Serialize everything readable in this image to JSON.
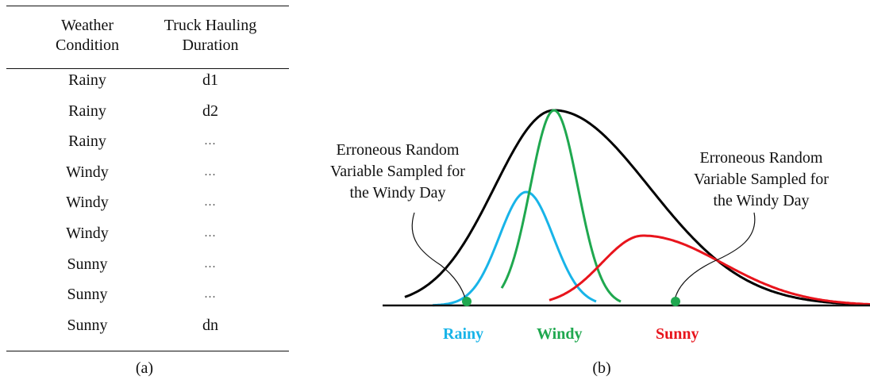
{
  "table": {
    "headers": {
      "weather": [
        "Weather",
        "Condition"
      ],
      "duration": [
        "Truck Hauling",
        "Duration"
      ]
    },
    "rows": [
      {
        "weather": "Rainy",
        "duration": "d1"
      },
      {
        "weather": "Rainy",
        "duration": "d2"
      },
      {
        "weather": "Rainy",
        "duration": "..."
      },
      {
        "weather": "Windy",
        "duration": "..."
      },
      {
        "weather": "Windy",
        "duration": "..."
      },
      {
        "weather": "Windy",
        "duration": "..."
      },
      {
        "weather": "Sunny",
        "duration": "..."
      },
      {
        "weather": "Sunny",
        "duration": "..."
      },
      {
        "weather": "Sunny",
        "duration": "dn"
      }
    ],
    "caption": "(a)"
  },
  "diagram": {
    "caption": "(b)",
    "annotation_left": [
      "Erroneous Random",
      "Variable Sampled for",
      "the Windy Day"
    ],
    "annotation_right": [
      "Erroneous Random",
      "Variable Sampled for",
      "the Windy Day"
    ],
    "labels": {
      "rainy": "Rainy",
      "windy": "Windy",
      "sunny": "Sunny"
    },
    "colors": {
      "rainy": "#18b4e8",
      "windy": "#1fa84f",
      "sunny": "#e8141c",
      "overall": "#000000",
      "sample_point": "#1fa84f"
    }
  }
}
